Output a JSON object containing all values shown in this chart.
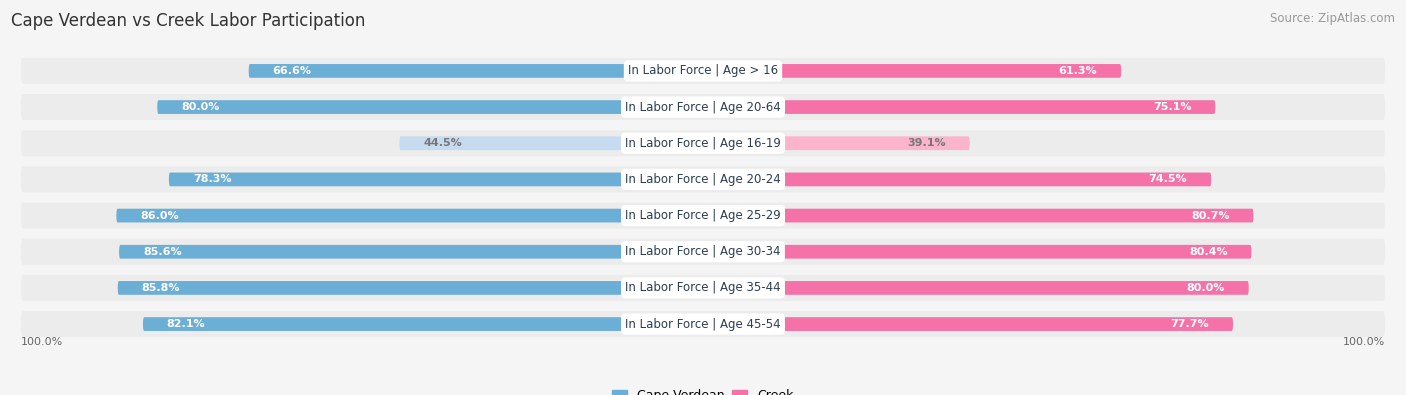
{
  "title": "Cape Verdean vs Creek Labor Participation",
  "source": "Source: ZipAtlas.com",
  "categories": [
    "In Labor Force | Age > 16",
    "In Labor Force | Age 20-64",
    "In Labor Force | Age 16-19",
    "In Labor Force | Age 20-24",
    "In Labor Force | Age 25-29",
    "In Labor Force | Age 30-34",
    "In Labor Force | Age 35-44",
    "In Labor Force | Age 45-54"
  ],
  "cape_verdean": [
    66.6,
    80.0,
    44.5,
    78.3,
    86.0,
    85.6,
    85.8,
    82.1
  ],
  "creek": [
    61.3,
    75.1,
    39.1,
    74.5,
    80.7,
    80.4,
    80.0,
    77.7
  ],
  "cv_color": "#6baed6",
  "cv_color_light": "#c6dbef",
  "creek_color": "#f472a8",
  "creek_color_light": "#fbb4cb",
  "row_bg": "#ececec",
  "page_bg": "#f5f5f5",
  "max_val": 100.0,
  "label_fontsize": 8.0,
  "cat_fontsize": 8.5,
  "title_fontsize": 12,
  "source_fontsize": 8.5,
  "cv_text_colors": [
    "white",
    "white",
    "#777777",
    "white",
    "white",
    "white",
    "white",
    "white"
  ],
  "ck_text_colors": [
    "white",
    "white",
    "#777777",
    "white",
    "white",
    "white",
    "white",
    "white"
  ]
}
